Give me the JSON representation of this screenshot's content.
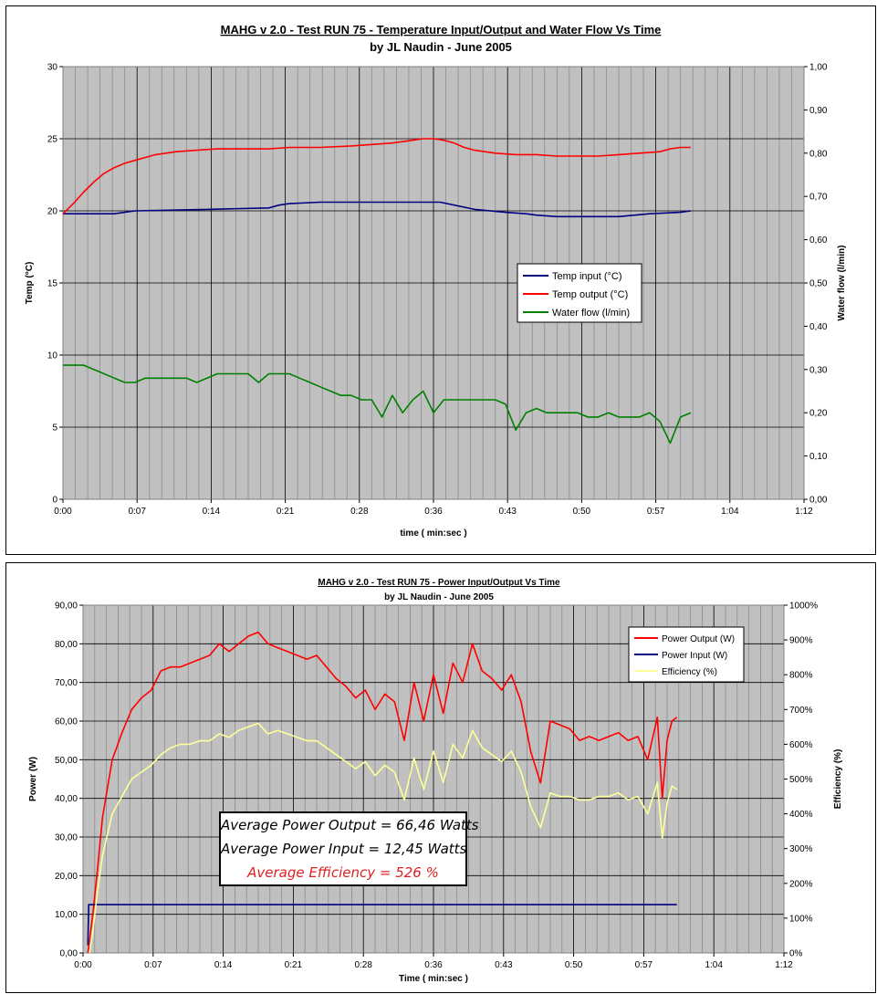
{
  "colors": {
    "plot_bg": "#c0c0c0",
    "grid": "#000000",
    "temp_input": "#000080",
    "temp_output": "#ff0000",
    "water_flow": "#008000",
    "power_output": "#ff0000",
    "power_input": "#000080",
    "efficiency": "#ffff99",
    "annotation_highlight": "#e02020"
  },
  "chart_data": [
    {
      "type": "line",
      "title": "MAHG v 2.0 - Test RUN 75 - Temperature Input/Output and Water Flow Vs Time",
      "subtitle": "by JL Naudin - June 2005",
      "xlabel": "time  ( min:sec )",
      "ylabel": "Temp (°C)",
      "y2label": "Water flow   (l/min)",
      "x_ticks": [
        "0:00",
        "0:07",
        "0:14",
        "0:21",
        "0:28",
        "0:36",
        "0:43",
        "0:50",
        "0:57",
        "1:04",
        "1:12"
      ],
      "y_ticks": [
        "0",
        "5",
        "10",
        "15",
        "20",
        "25",
        "30"
      ],
      "y2_ticks": [
        "0,00",
        "0,10",
        "0,20",
        "0,30",
        "0,40",
        "0,50",
        "0,60",
        "0,70",
        "0,80",
        "0,90",
        "1,00"
      ],
      "xlim_seconds": [
        0,
        4320
      ],
      "ylim": [
        0,
        30
      ],
      "y2lim": [
        0,
        1.0
      ],
      "grid": true,
      "legend_position": "center-right",
      "series": [
        {
          "name": "Temp input (°C)",
          "axis": "left",
          "x": [
            0,
            300,
            420,
            840,
            1200,
            1260,
            1320,
            1500,
            1800,
            2100,
            2200,
            2400,
            2580,
            2700,
            2760,
            2880,
            3000,
            3240,
            3420,
            3600,
            3660
          ],
          "y": [
            19.8,
            19.8,
            20.0,
            20.1,
            20.2,
            20.4,
            20.5,
            20.6,
            20.6,
            20.6,
            20.6,
            20.1,
            19.9,
            19.8,
            19.7,
            19.6,
            19.6,
            19.6,
            19.8,
            19.9,
            20.0
          ]
        },
        {
          "name": "Temp output (°C)",
          "axis": "left",
          "x": [
            0,
            60,
            120,
            180,
            240,
            300,
            360,
            420,
            480,
            540,
            660,
            780,
            900,
            1080,
            1200,
            1320,
            1500,
            1680,
            1800,
            1920,
            2040,
            2100,
            2160,
            2220,
            2280,
            2340,
            2400,
            2520,
            2640,
            2760,
            2880,
            3000,
            3120,
            3240,
            3360,
            3480,
            3540,
            3600,
            3660
          ],
          "y": [
            19.8,
            20.5,
            21.3,
            22.0,
            22.6,
            23.0,
            23.3,
            23.5,
            23.7,
            23.9,
            24.1,
            24.2,
            24.3,
            24.3,
            24.3,
            24.4,
            24.4,
            24.5,
            24.6,
            24.7,
            24.9,
            25.0,
            25.0,
            24.9,
            24.7,
            24.4,
            24.2,
            24.0,
            23.9,
            23.9,
            23.8,
            23.8,
            23.8,
            23.9,
            24.0,
            24.1,
            24.3,
            24.4,
            24.4
          ]
        },
        {
          "name": "Water flow (l/min)",
          "axis": "right",
          "x": [
            0,
            120,
            180,
            240,
            300,
            360,
            420,
            480,
            540,
            600,
            660,
            720,
            780,
            840,
            900,
            960,
            1020,
            1080,
            1140,
            1200,
            1260,
            1320,
            1380,
            1440,
            1500,
            1560,
            1620,
            1680,
            1740,
            1800,
            1860,
            1920,
            1980,
            2040,
            2100,
            2160,
            2220,
            2280,
            2340,
            2400,
            2460,
            2520,
            2580,
            2640,
            2700,
            2760,
            2820,
            2880,
            2940,
            3000,
            3060,
            3120,
            3180,
            3240,
            3300,
            3360,
            3420,
            3480,
            3540,
            3600,
            3660
          ],
          "y": [
            0.31,
            0.31,
            0.3,
            0.29,
            0.28,
            0.27,
            0.27,
            0.28,
            0.28,
            0.28,
            0.28,
            0.28,
            0.27,
            0.28,
            0.29,
            0.29,
            0.29,
            0.29,
            0.27,
            0.29,
            0.29,
            0.29,
            0.28,
            0.27,
            0.26,
            0.25,
            0.24,
            0.24,
            0.23,
            0.23,
            0.19,
            0.24,
            0.2,
            0.23,
            0.25,
            0.2,
            0.23,
            0.23,
            0.23,
            0.23,
            0.23,
            0.23,
            0.22,
            0.16,
            0.2,
            0.21,
            0.2,
            0.2,
            0.2,
            0.2,
            0.19,
            0.19,
            0.2,
            0.19,
            0.19,
            0.19,
            0.2,
            0.18,
            0.13,
            0.19,
            0.2
          ]
        }
      ]
    },
    {
      "type": "line",
      "title": "MAHG v 2.0 - Test RUN 75 - Power Input/Output Vs Time",
      "subtitle": "by JL Naudin - June 2005",
      "xlabel": "Time  ( min:sec )",
      "ylabel": "Power (W)",
      "y2label": "Efficiency (%)",
      "x_ticks": [
        "0:00",
        "0:07",
        "0:14",
        "0:21",
        "0:28",
        "0:36",
        "0:43",
        "0:50",
        "0:57",
        "1:04",
        "1:12"
      ],
      "y_ticks": [
        "0,00",
        "10,00",
        "20,00",
        "30,00",
        "40,00",
        "50,00",
        "60,00",
        "70,00",
        "80,00",
        "90,00"
      ],
      "y2_ticks": [
        "0%",
        "100%",
        "200%",
        "300%",
        "400%",
        "500%",
        "600%",
        "700%",
        "800%",
        "900%",
        "1000%"
      ],
      "xlim_seconds": [
        0,
        4320
      ],
      "ylim": [
        0,
        90
      ],
      "y2lim": [
        0,
        1000
      ],
      "grid": true,
      "legend_position": "top-right",
      "series": [
        {
          "name": "Power Output (W)",
          "axis": "left",
          "x": [
            30,
            60,
            90,
            120,
            180,
            240,
            300,
            360,
            420,
            480,
            540,
            600,
            660,
            720,
            780,
            840,
            900,
            960,
            1020,
            1080,
            1140,
            1200,
            1260,
            1320,
            1380,
            1440,
            1500,
            1560,
            1620,
            1680,
            1740,
            1800,
            1860,
            1920,
            1980,
            2040,
            2100,
            2160,
            2220,
            2280,
            2340,
            2400,
            2460,
            2520,
            2580,
            2640,
            2700,
            2760,
            2820,
            2880,
            2940,
            3000,
            3060,
            3120,
            3180,
            3240,
            3300,
            3360,
            3420,
            3480,
            3540,
            3570,
            3600,
            3630,
            3660
          ],
          "y": [
            0,
            10,
            22,
            35,
            50,
            57,
            63,
            66,
            68,
            73,
            74,
            74,
            75,
            76,
            77,
            80,
            78,
            80,
            82,
            83,
            80,
            79,
            78,
            77,
            76,
            77,
            74,
            71,
            69,
            66,
            68,
            63,
            67,
            65,
            55,
            70,
            60,
            72,
            62,
            75,
            70,
            80,
            73,
            71,
            68,
            72,
            65,
            52,
            44,
            60,
            59,
            58,
            55,
            56,
            55,
            56,
            57,
            55,
            56,
            50,
            61,
            40,
            55,
            60,
            61
          ]
        },
        {
          "name": "Power Input (W)",
          "axis": "left",
          "x": [
            30,
            35,
            60,
            300,
            900,
            1800,
            2700,
            3300,
            3660
          ],
          "y": [
            2,
            12.5,
            12.5,
            12.5,
            12.5,
            12.5,
            12.5,
            12.5,
            12.5
          ]
        },
        {
          "name": "Efficiency (%)",
          "axis": "right",
          "x": [
            40,
            60,
            90,
            120,
            180,
            240,
            300,
            360,
            420,
            480,
            540,
            600,
            660,
            720,
            780,
            840,
            900,
            960,
            1020,
            1080,
            1140,
            1200,
            1260,
            1320,
            1380,
            1440,
            1500,
            1560,
            1620,
            1680,
            1740,
            1800,
            1860,
            1920,
            1980,
            2040,
            2100,
            2160,
            2220,
            2280,
            2340,
            2400,
            2460,
            2520,
            2580,
            2640,
            2700,
            2760,
            2820,
            2880,
            2940,
            3000,
            3060,
            3120,
            3180,
            3240,
            3300,
            3360,
            3420,
            3480,
            3540,
            3570,
            3600,
            3630,
            3660
          ],
          "y": [
            0,
            60,
            180,
            280,
            400,
            450,
            500,
            520,
            540,
            570,
            590,
            600,
            600,
            610,
            610,
            630,
            620,
            640,
            650,
            660,
            630,
            640,
            630,
            620,
            610,
            610,
            590,
            570,
            550,
            530,
            550,
            510,
            540,
            520,
            440,
            560,
            470,
            580,
            490,
            600,
            560,
            640,
            590,
            570,
            550,
            580,
            520,
            420,
            360,
            460,
            450,
            450,
            440,
            440,
            450,
            450,
            460,
            440,
            450,
            400,
            490,
            330,
            430,
            480,
            470
          ]
        }
      ]
    }
  ],
  "annotation": {
    "line1": "Average Power Output = 66,46 Watts",
    "line2": "Average Power Input = 12,45 Watts",
    "line3": "Average Efficiency =  526 %"
  }
}
